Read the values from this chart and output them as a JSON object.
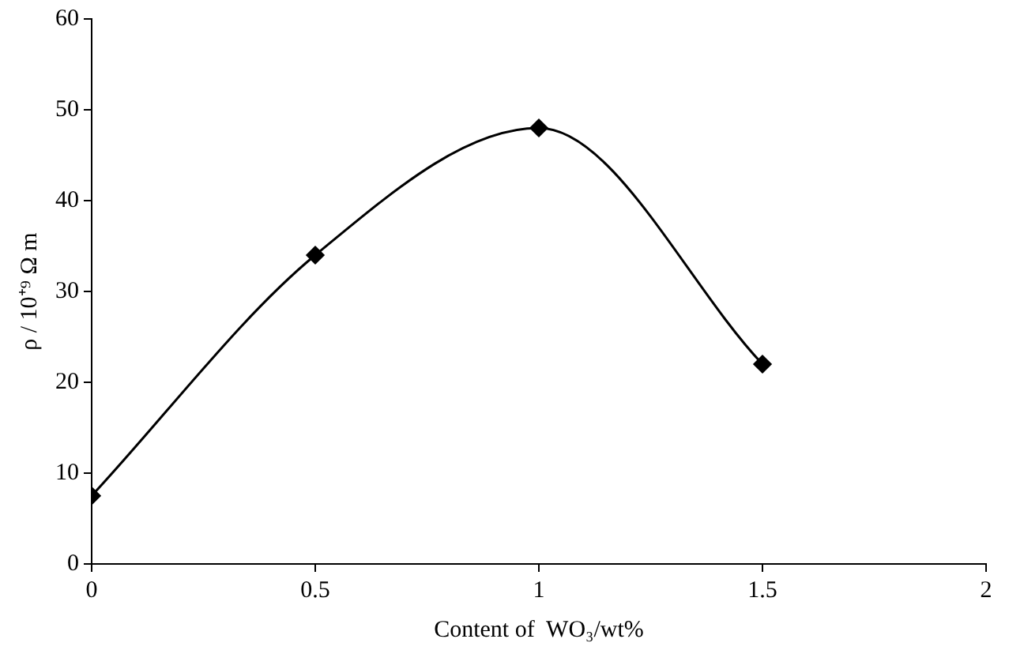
{
  "chart_data": {
    "type": "line",
    "xlabel": "Content of  WO₃/wt%",
    "ylabel": "ρ / 10⁺⁹ Ω m",
    "x": [
      0,
      0.5,
      1,
      1.5
    ],
    "series": [
      {
        "color": "#000000",
        "values": [
          7.5,
          34,
          48,
          22
        ]
      }
    ],
    "xlim": [
      0,
      2
    ],
    "xticks": [
      0,
      0.5,
      1,
      1.5,
      2
    ],
    "ylim": [
      0,
      60
    ],
    "yticks": [
      0,
      10,
      20,
      30,
      40,
      50,
      60
    ],
    "grid": false,
    "legend": false,
    "marker": "diamond",
    "line_style": "solid"
  }
}
